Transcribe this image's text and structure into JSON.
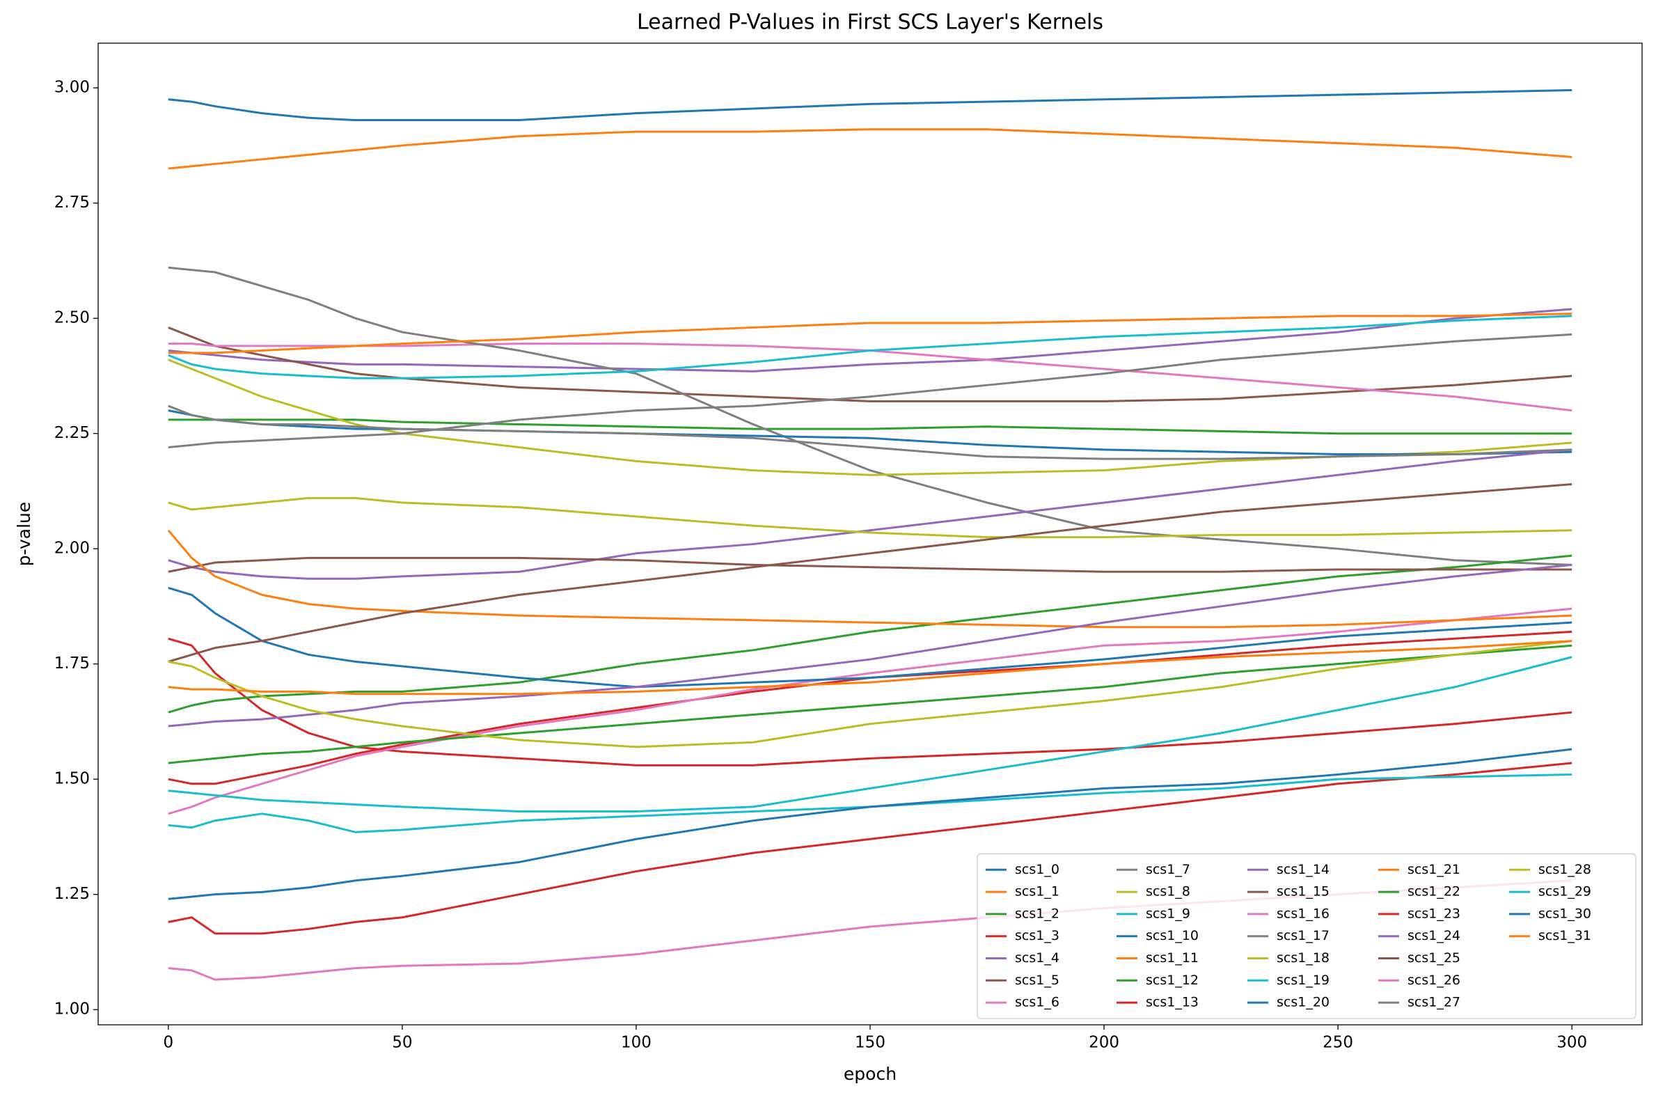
{
  "chart_data": {
    "type": "line",
    "title": "Learned P-Values in First SCS Layer's Kernels",
    "xlabel": "epoch",
    "ylabel": "p-value",
    "xlim": [
      -15,
      315
    ],
    "ylim": [
      0.967,
      3.097
    ],
    "xticks": [
      0,
      50,
      100,
      150,
      200,
      250,
      300
    ],
    "yticks": [
      {
        "value": 1.0,
        "label": "1.00"
      },
      {
        "value": 1.25,
        "label": "1.25"
      },
      {
        "value": 1.5,
        "label": "1.50"
      },
      {
        "value": 1.75,
        "label": "1.75"
      },
      {
        "value": 2.0,
        "label": "2.00"
      },
      {
        "value": 2.25,
        "label": "2.25"
      },
      {
        "value": 2.5,
        "label": "2.50"
      },
      {
        "value": 2.75,
        "label": "2.75"
      },
      {
        "value": 3.0,
        "label": "3.00"
      }
    ],
    "legend_position": "lower right",
    "x": [
      0,
      5,
      10,
      20,
      30,
      40,
      50,
      75,
      100,
      125,
      150,
      175,
      200,
      225,
      250,
      275,
      300
    ],
    "series": [
      {
        "name": "scs1_0",
        "color": "#1f77b4",
        "values": [
          2.975,
          2.97,
          2.96,
          2.945,
          2.935,
          2.93,
          2.93,
          2.93,
          2.945,
          2.955,
          2.965,
          2.97,
          2.975,
          2.98,
          2.985,
          2.99,
          2.995
        ]
      },
      {
        "name": "scs1_1",
        "color": "#ff7f0e",
        "values": [
          2.825,
          2.83,
          2.835,
          2.845,
          2.855,
          2.865,
          2.875,
          2.895,
          2.905,
          2.905,
          2.91,
          2.91,
          2.9,
          2.89,
          2.88,
          2.87,
          2.85
        ]
      },
      {
        "name": "scs1_2",
        "color": "#2ca02c",
        "values": [
          2.28,
          2.28,
          2.28,
          2.28,
          2.28,
          2.28,
          2.275,
          2.27,
          2.265,
          2.26,
          2.26,
          2.265,
          2.26,
          2.255,
          2.25,
          2.25,
          2.25
        ]
      },
      {
        "name": "scs1_3",
        "color": "#d62728",
        "values": [
          1.805,
          1.79,
          1.73,
          1.65,
          1.6,
          1.57,
          1.56,
          1.545,
          1.53,
          1.53,
          1.545,
          1.555,
          1.565,
          1.58,
          1.6,
          1.62,
          1.645
        ]
      },
      {
        "name": "scs1_4",
        "color": "#9467bd",
        "values": [
          2.43,
          2.425,
          2.42,
          2.41,
          2.405,
          2.4,
          2.4,
          2.395,
          2.39,
          2.385,
          2.4,
          2.41,
          2.43,
          2.45,
          2.47,
          2.5,
          2.52
        ]
      },
      {
        "name": "scs1_5",
        "color": "#8c564b",
        "values": [
          2.48,
          2.46,
          2.44,
          2.42,
          2.4,
          2.38,
          2.37,
          2.35,
          2.34,
          2.33,
          2.32,
          2.32,
          2.32,
          2.325,
          2.34,
          2.355,
          2.375
        ]
      },
      {
        "name": "scs1_6",
        "color": "#e377c2",
        "values": [
          2.445,
          2.445,
          2.44,
          2.44,
          2.44,
          2.44,
          2.44,
          2.445,
          2.445,
          2.44,
          2.43,
          2.41,
          2.39,
          2.37,
          2.35,
          2.33,
          2.3
        ]
      },
      {
        "name": "scs1_7",
        "color": "#7f7f7f",
        "values": [
          2.61,
          2.605,
          2.6,
          2.57,
          2.54,
          2.5,
          2.47,
          2.43,
          2.38,
          2.27,
          2.17,
          2.1,
          2.04,
          2.02,
          2.0,
          1.975,
          1.965
        ]
      },
      {
        "name": "scs1_8",
        "color": "#bcbd22",
        "values": [
          2.41,
          2.39,
          2.37,
          2.33,
          2.3,
          2.27,
          2.25,
          2.22,
          2.19,
          2.17,
          2.16,
          2.165,
          2.17,
          2.19,
          2.2,
          2.21,
          2.23
        ]
      },
      {
        "name": "scs1_9",
        "color": "#17becf",
        "values": [
          2.42,
          2.4,
          2.39,
          2.38,
          2.375,
          2.37,
          2.37,
          2.375,
          2.385,
          2.405,
          2.43,
          2.445,
          2.46,
          2.47,
          2.48,
          2.495,
          2.505
        ]
      },
      {
        "name": "scs1_10",
        "color": "#1f77b4",
        "values": [
          2.3,
          2.29,
          2.28,
          2.27,
          2.265,
          2.26,
          2.26,
          2.255,
          2.25,
          2.245,
          2.24,
          2.225,
          2.215,
          2.21,
          2.205,
          2.205,
          2.21
        ]
      },
      {
        "name": "scs1_11",
        "color": "#ff7f0e",
        "values": [
          2.425,
          2.425,
          2.425,
          2.43,
          2.435,
          2.44,
          2.445,
          2.455,
          2.47,
          2.48,
          2.49,
          2.49,
          2.495,
          2.5,
          2.505,
          2.505,
          2.51
        ]
      },
      {
        "name": "scs1_12",
        "color": "#2ca02c",
        "values": [
          1.645,
          1.66,
          1.67,
          1.68,
          1.685,
          1.69,
          1.69,
          1.71,
          1.75,
          1.78,
          1.82,
          1.85,
          1.88,
          1.91,
          1.94,
          1.96,
          1.985
        ]
      },
      {
        "name": "scs1_13",
        "color": "#d62728",
        "values": [
          1.5,
          1.49,
          1.49,
          1.51,
          1.53,
          1.555,
          1.575,
          1.62,
          1.655,
          1.69,
          1.72,
          1.735,
          1.75,
          1.77,
          1.79,
          1.805,
          1.82
        ]
      },
      {
        "name": "scs1_14",
        "color": "#9467bd",
        "values": [
          1.975,
          1.96,
          1.95,
          1.94,
          1.935,
          1.935,
          1.94,
          1.95,
          1.99,
          2.01,
          2.04,
          2.07,
          2.1,
          2.13,
          2.16,
          2.19,
          2.215
        ]
      },
      {
        "name": "scs1_15",
        "color": "#8c564b",
        "values": [
          1.95,
          1.96,
          1.97,
          1.975,
          1.98,
          1.98,
          1.98,
          1.98,
          1.975,
          1.965,
          1.96,
          1.955,
          1.95,
          1.95,
          1.955,
          1.955,
          1.955
        ]
      },
      {
        "name": "scs1_16",
        "color": "#e377c2",
        "values": [
          1.425,
          1.44,
          1.46,
          1.49,
          1.52,
          1.55,
          1.57,
          1.615,
          1.65,
          1.695,
          1.73,
          1.76,
          1.79,
          1.8,
          1.82,
          1.845,
          1.87
        ]
      },
      {
        "name": "scs1_17",
        "color": "#7f7f7f",
        "values": [
          2.22,
          2.225,
          2.23,
          2.235,
          2.24,
          2.245,
          2.25,
          2.28,
          2.3,
          2.31,
          2.33,
          2.355,
          2.38,
          2.41,
          2.43,
          2.45,
          2.465
        ]
      },
      {
        "name": "scs1_18",
        "color": "#bcbd22",
        "values": [
          2.1,
          2.085,
          2.09,
          2.1,
          2.11,
          2.11,
          2.1,
          2.09,
          2.07,
          2.05,
          2.035,
          2.025,
          2.025,
          2.03,
          2.03,
          2.035,
          2.04
        ]
      },
      {
        "name": "scs1_19",
        "color": "#17becf",
        "values": [
          1.475,
          1.47,
          1.465,
          1.455,
          1.45,
          1.445,
          1.44,
          1.43,
          1.43,
          1.44,
          1.48,
          1.52,
          1.56,
          1.6,
          1.65,
          1.7,
          1.765
        ]
      },
      {
        "name": "scs1_20",
        "color": "#1f77b4",
        "values": [
          1.915,
          1.9,
          1.86,
          1.8,
          1.77,
          1.755,
          1.745,
          1.72,
          1.7,
          1.71,
          1.72,
          1.74,
          1.76,
          1.785,
          1.81,
          1.825,
          1.84
        ]
      },
      {
        "name": "scs1_21",
        "color": "#ff7f0e",
        "values": [
          2.04,
          1.98,
          1.94,
          1.9,
          1.88,
          1.87,
          1.865,
          1.855,
          1.85,
          1.845,
          1.84,
          1.835,
          1.83,
          1.83,
          1.835,
          1.845,
          1.855
        ]
      },
      {
        "name": "scs1_22",
        "color": "#2ca02c",
        "values": [
          1.535,
          1.54,
          1.545,
          1.555,
          1.56,
          1.57,
          1.58,
          1.6,
          1.62,
          1.64,
          1.66,
          1.68,
          1.7,
          1.73,
          1.75,
          1.77,
          1.79
        ]
      },
      {
        "name": "scs1_23",
        "color": "#d62728",
        "values": [
          1.19,
          1.2,
          1.165,
          1.165,
          1.175,
          1.19,
          1.2,
          1.25,
          1.3,
          1.34,
          1.37,
          1.4,
          1.43,
          1.46,
          1.49,
          1.51,
          1.535
        ]
      },
      {
        "name": "scs1_24",
        "color": "#9467bd",
        "values": [
          1.615,
          1.62,
          1.625,
          1.63,
          1.64,
          1.65,
          1.665,
          1.68,
          1.7,
          1.73,
          1.76,
          1.8,
          1.84,
          1.875,
          1.91,
          1.94,
          1.965
        ]
      },
      {
        "name": "scs1_25",
        "color": "#8c564b",
        "values": [
          1.755,
          1.77,
          1.785,
          1.8,
          1.82,
          1.84,
          1.86,
          1.9,
          1.93,
          1.96,
          1.99,
          2.02,
          2.05,
          2.08,
          2.1,
          2.12,
          2.14
        ]
      },
      {
        "name": "scs1_26",
        "color": "#e377c2",
        "values": [
          1.09,
          1.085,
          1.065,
          1.07,
          1.08,
          1.09,
          1.095,
          1.1,
          1.12,
          1.15,
          1.18,
          1.2,
          1.22,
          1.235,
          1.25,
          1.265,
          1.28
        ]
      },
      {
        "name": "scs1_27",
        "color": "#7f7f7f",
        "values": [
          2.31,
          2.29,
          2.28,
          2.27,
          2.27,
          2.265,
          2.26,
          2.255,
          2.25,
          2.24,
          2.22,
          2.2,
          2.195,
          2.195,
          2.2,
          2.205,
          2.215
        ]
      },
      {
        "name": "scs1_28",
        "color": "#bcbd22",
        "values": [
          1.755,
          1.745,
          1.72,
          1.68,
          1.65,
          1.63,
          1.615,
          1.585,
          1.57,
          1.58,
          1.62,
          1.645,
          1.67,
          1.7,
          1.74,
          1.77,
          1.8
        ]
      },
      {
        "name": "scs1_29",
        "color": "#17becf",
        "values": [
          1.4,
          1.395,
          1.41,
          1.425,
          1.41,
          1.385,
          1.39,
          1.41,
          1.42,
          1.43,
          1.44,
          1.455,
          1.47,
          1.48,
          1.5,
          1.505,
          1.51
        ]
      },
      {
        "name": "scs1_30",
        "color": "#1f77b4",
        "values": [
          1.24,
          1.245,
          1.25,
          1.255,
          1.265,
          1.28,
          1.29,
          1.32,
          1.37,
          1.41,
          1.44,
          1.46,
          1.48,
          1.49,
          1.51,
          1.535,
          1.565
        ]
      },
      {
        "name": "scs1_31",
        "color": "#ff7f0e",
        "values": [
          1.7,
          1.695,
          1.695,
          1.69,
          1.69,
          1.685,
          1.685,
          1.685,
          1.69,
          1.7,
          1.71,
          1.73,
          1.75,
          1.765,
          1.775,
          1.785,
          1.8
        ]
      }
    ]
  }
}
